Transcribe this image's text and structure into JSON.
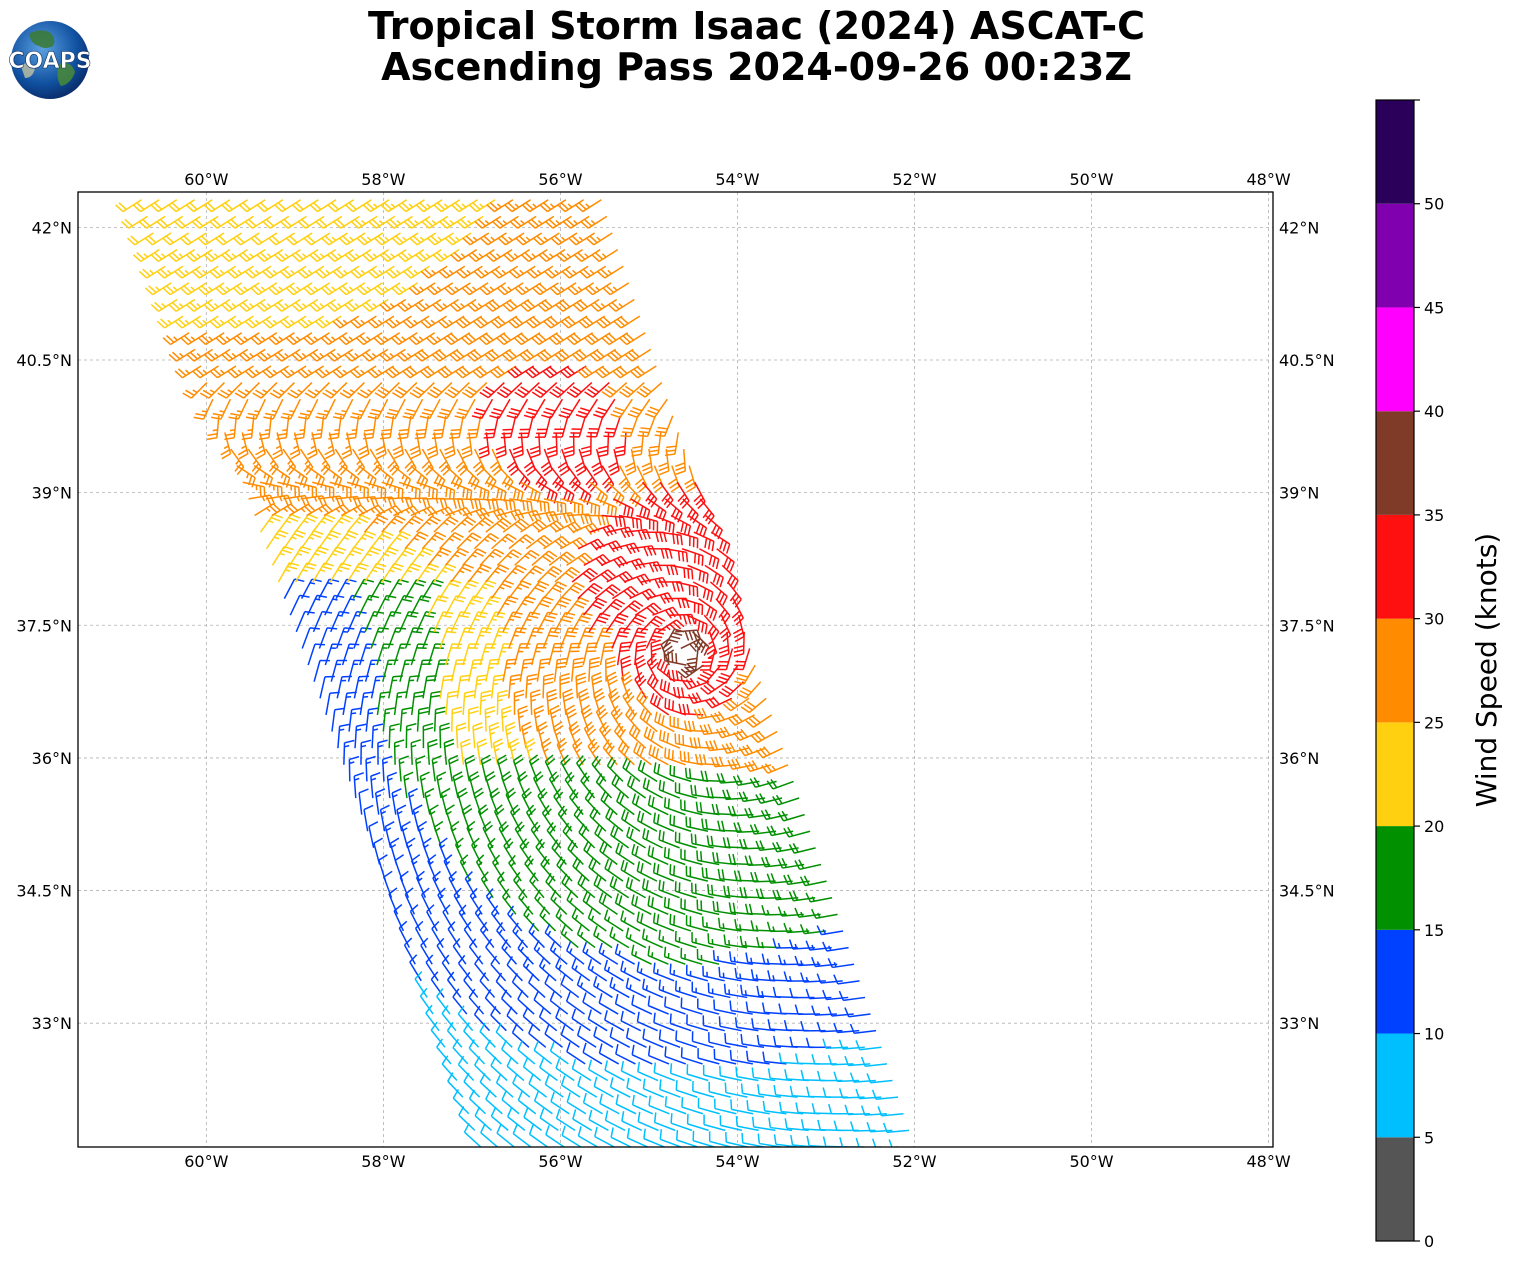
{
  "header": {
    "line1": "Tropical Storm Isaac (2024) ASCAT-C",
    "line2": "Ascending Pass 2024-09-26 00:23Z"
  },
  "logo": {
    "text": "COAPS",
    "icon": "globe-icon"
  },
  "chart_data": {
    "type": "wind-barb-map",
    "xlim": [
      -61.45,
      -47.95
    ],
    "ylim": [
      31.6,
      42.4
    ],
    "grid": true,
    "lon_ticks": [
      {
        "value": -60,
        "label": "60°W"
      },
      {
        "value": -58,
        "label": "58°W"
      },
      {
        "value": -56,
        "label": "56°W"
      },
      {
        "value": -54,
        "label": "54°W"
      },
      {
        "value": -52,
        "label": "52°W"
      },
      {
        "value": -50,
        "label": "50°W"
      },
      {
        "value": -48,
        "label": "48°W"
      }
    ],
    "lat_ticks": [
      {
        "value": 33,
        "label": "33°N"
      },
      {
        "value": 34.5,
        "label": "34.5°N"
      },
      {
        "value": 36,
        "label": "36°N"
      },
      {
        "value": 37.5,
        "label": "37.5°N"
      },
      {
        "value": 39,
        "label": "39°N"
      },
      {
        "value": 40.5,
        "label": "40.5°N"
      },
      {
        "value": 42,
        "label": "42°N"
      }
    ],
    "storm_center": {
      "lon": -54.6,
      "lat": 37.2
    },
    "swath_corners": [
      [
        -60.8,
        42.5
      ],
      [
        -55.6,
        42.5
      ],
      [
        -52.0,
        31.6
      ],
      [
        -56.9,
        31.6
      ]
    ],
    "colorbar": {
      "label": "Wind Speed (knots)",
      "tick_values": [
        0,
        5,
        10,
        15,
        20,
        25,
        30,
        35,
        40,
        45,
        50
      ],
      "bins": [
        {
          "min": 0,
          "max": 5,
          "color": "#555555"
        },
        {
          "min": 5,
          "max": 10,
          "color": "#00bfff"
        },
        {
          "min": 10,
          "max": 15,
          "color": "#0040ff"
        },
        {
          "min": 15,
          "max": 20,
          "color": "#009000"
        },
        {
          "min": 20,
          "max": 25,
          "color": "#ffd010"
        },
        {
          "min": 25,
          "max": 30,
          "color": "#ff8c00"
        },
        {
          "min": 30,
          "max": 35,
          "color": "#ff1010"
        },
        {
          "min": 35,
          "max": 40,
          "color": "#803a28"
        },
        {
          "min": 40,
          "max": 45,
          "color": "#ff00ff"
        },
        {
          "min": 45,
          "max": 50,
          "color": "#8000b0"
        },
        {
          "min": 50,
          "max": 55,
          "color": "#2a005a"
        }
      ]
    }
  }
}
